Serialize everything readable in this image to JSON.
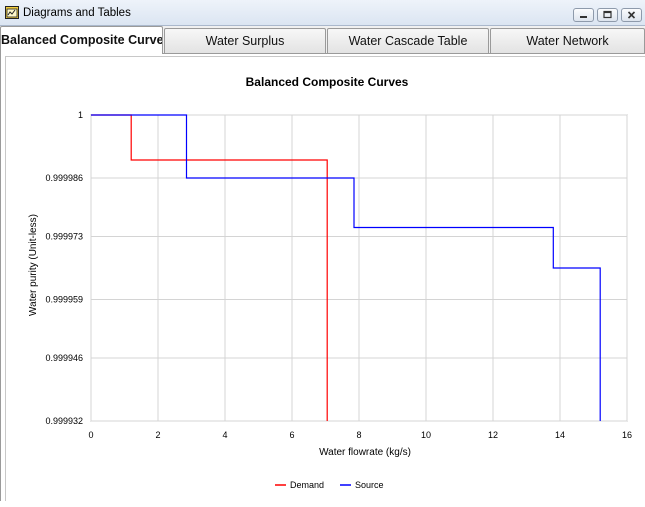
{
  "window": {
    "title": "Diagrams and Tables",
    "icon": "folder-chart-icon",
    "controls": [
      "minimize-icon",
      "maximize-icon",
      "close-icon"
    ]
  },
  "tabs": [
    {
      "label": "Balanced Composite Curves",
      "active": true
    },
    {
      "label": "Water Surplus",
      "active": false
    },
    {
      "label": "Water Cascade Table",
      "active": false
    },
    {
      "label": "Water Network",
      "active": false
    }
  ],
  "colors": {
    "demand": "#ff0000",
    "source": "#0000ff"
  },
  "chart_data": {
    "type": "line",
    "title": "Balanced Composite Curves",
    "xlabel": "Water flowrate (kg/s)",
    "ylabel": "Water purity (Unit-less)",
    "xlim": [
      0,
      16
    ],
    "ylim": [
      0.999932,
      1
    ],
    "xticks": [
      0,
      2,
      4,
      6,
      8,
      10,
      12,
      14,
      16
    ],
    "yticks": [
      "0.999932",
      "0.999946",
      "0.999959",
      "0.999973",
      "0.999986",
      "1"
    ],
    "grid": true,
    "legend_position": "bottom",
    "series": [
      {
        "name": "Demand",
        "color": "#ff0000",
        "points": [
          [
            0,
            1
          ],
          [
            1.2,
            1
          ],
          [
            1.2,
            0.99999
          ],
          [
            7.05,
            0.99999
          ],
          [
            7.05,
            0.999932
          ]
        ]
      },
      {
        "name": "Source",
        "color": "#0000ff",
        "points": [
          [
            0,
            1
          ],
          [
            2.85,
            1
          ],
          [
            2.85,
            0.999986
          ],
          [
            7.85,
            0.999986
          ],
          [
            7.85,
            0.999975
          ],
          [
            13.8,
            0.999975
          ],
          [
            13.8,
            0.999966
          ],
          [
            15.2,
            0.999966
          ],
          [
            15.2,
            0.999932
          ]
        ]
      }
    ]
  }
}
